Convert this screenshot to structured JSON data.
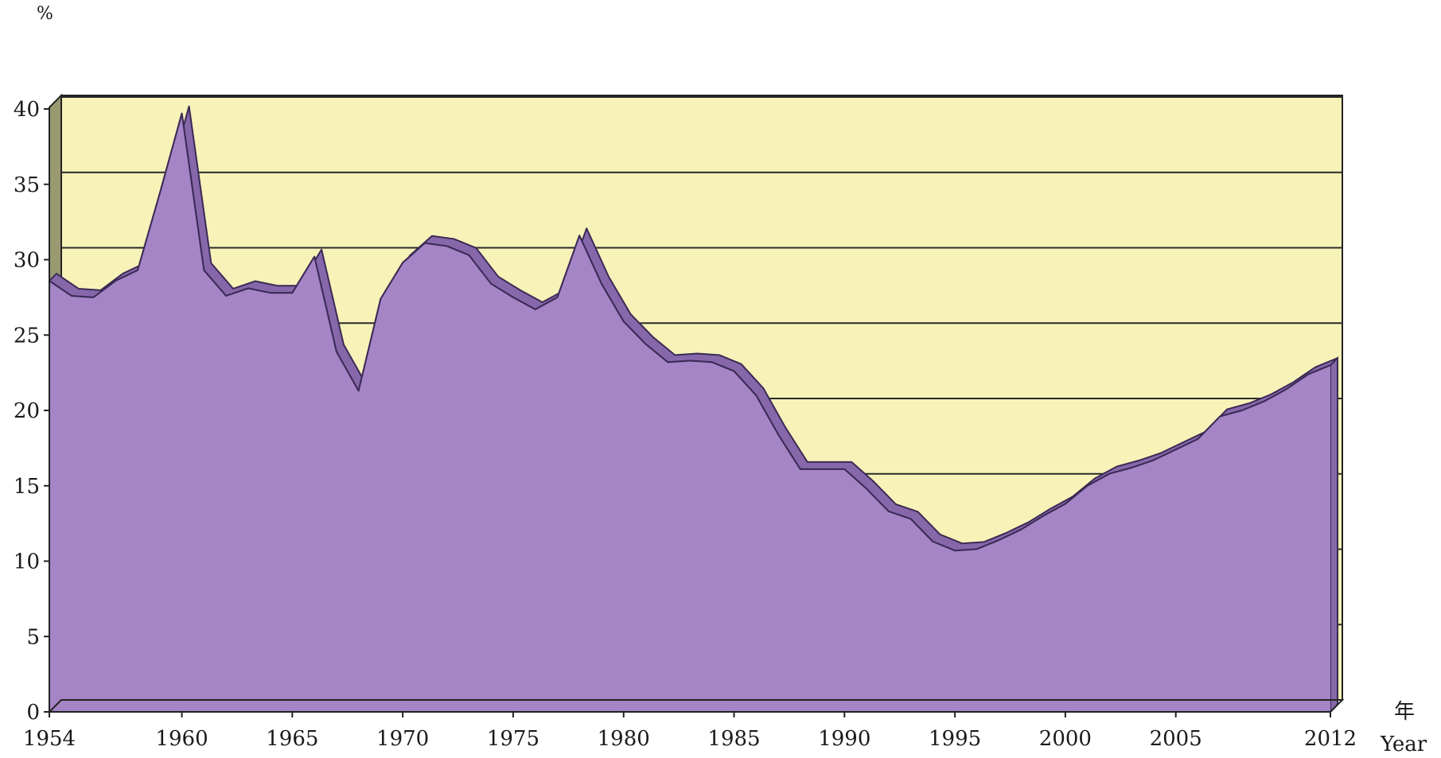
{
  "chart_data": {
    "type": "area",
    "y_unit": "%",
    "x_name": [
      "年",
      "Year"
    ],
    "x_tick_labels": [
      "1954",
      "1960",
      "1965",
      "1970",
      "1975",
      "1980",
      "1985",
      "1990",
      "1995",
      "2000",
      "2005",
      "2012"
    ],
    "y_ticks": [
      0,
      5,
      10,
      15,
      20,
      25,
      30,
      35,
      40
    ],
    "ylim": [
      0,
      40
    ],
    "xlim": [
      1954,
      2012
    ],
    "grid": true,
    "three_d": true,
    "colors": {
      "area": "#a585c6",
      "area_edge": "#8668aa",
      "plot_background": "#f7f2b8",
      "left_wall": "#9a9a72",
      "grid": "#2a2a2a",
      "outline": "#222222"
    },
    "series": [
      {
        "x": [
          1954,
          1955,
          1956,
          1957,
          1958,
          1959,
          1960,
          1961,
          1962,
          1963,
          1964,
          1965,
          1966,
          1967,
          1968,
          1969,
          1970,
          1971,
          1972,
          1973,
          1974,
          1975,
          1976,
          1977,
          1978,
          1979,
          1980,
          1981,
          1982,
          1983,
          1984,
          1985,
          1986,
          1987,
          1988,
          1989,
          1990,
          1991,
          1992,
          1993,
          1994,
          1995,
          1996,
          1997,
          1998,
          1999,
          2000,
          2001,
          2002,
          2003,
          2004,
          2005,
          2006,
          2007,
          2008,
          2009,
          2010,
          2011,
          2012
        ],
        "values": [
          28.6,
          27.6,
          27.5,
          28.6,
          29.3,
          34.4,
          39.7,
          29.3,
          27.6,
          28.1,
          27.8,
          27.8,
          30.2,
          23.9,
          21.3,
          27.4,
          29.8,
          31.1,
          30.9,
          30.3,
          28.4,
          27.5,
          26.7,
          27.5,
          31.6,
          28.4,
          25.9,
          24.4,
          23.2,
          23.3,
          23.2,
          22.6,
          21.0,
          18.4,
          16.1,
          16.1,
          16.1,
          14.8,
          13.3,
          12.8,
          11.3,
          10.7,
          10.8,
          11.4,
          12.1,
          13.0,
          13.8,
          15.0,
          15.8,
          16.2,
          16.7,
          17.4,
          18.1,
          19.6,
          20.0,
          20.6,
          21.4,
          22.4,
          23.0
        ]
      }
    ]
  }
}
